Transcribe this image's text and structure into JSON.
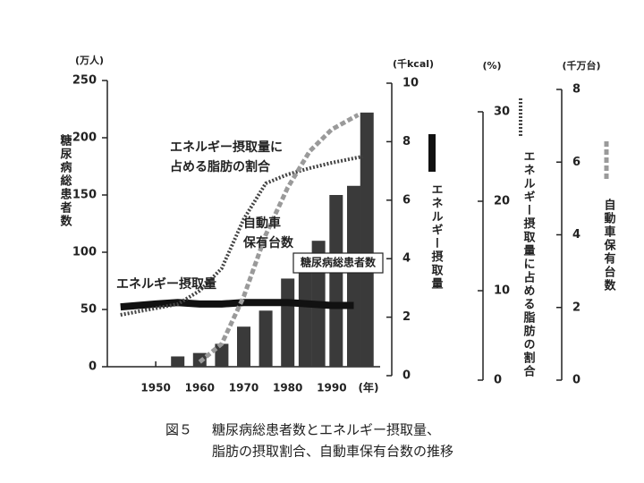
{
  "chart_data": {
    "type": "combo",
    "xlim": [
      1939,
      2001
    ],
    "xticks": [
      1950,
      1960,
      1970,
      1980,
      1990
    ],
    "x_unit": "(年)",
    "ylim": [
      0,
      250
    ],
    "yticks": [
      0,
      50,
      100,
      150,
      200,
      250
    ],
    "y_unit": "(万人)",
    "y2lim": [
      0,
      10
    ],
    "y2ticks": [
      0,
      2,
      4,
      6,
      8,
      10
    ],
    "y2_unit": "(千kcal)",
    "y3lim": [
      0,
      30
    ],
    "y3ticks": [
      0,
      10,
      20,
      30
    ],
    "y3_unit": "(%)",
    "y4lim": [
      0,
      8
    ],
    "y4ticks": [
      0,
      2,
      4,
      6,
      8
    ],
    "y4_unit": "(千万台)",
    "series": [
      {
        "name": "糖尿病総患者数",
        "type": "bar",
        "axis": "y",
        "color": "#3a3a3a",
        "x": [
          1955,
          1960,
          1965,
          1970,
          1975,
          1980,
          1984,
          1987,
          1991,
          1995,
          1998
        ],
        "values": [
          9,
          12,
          20,
          35,
          49,
          77,
          88,
          110,
          150,
          158,
          222
        ]
      },
      {
        "name": "エネルギー摂取量",
        "type": "line",
        "axis": "y2",
        "color": "#111111",
        "style": "solid",
        "x": [
          1942,
          1950,
          1955,
          1960,
          1965,
          1970,
          1975,
          1980,
          1985,
          1990,
          1995
        ],
        "values": [
          2.35,
          2.45,
          2.5,
          2.45,
          2.45,
          2.5,
          2.5,
          2.5,
          2.45,
          2.4,
          2.4
        ]
      },
      {
        "name": "エネルギー摂取量に占める脂肪の割合",
        "type": "line",
        "axis": "y3",
        "color": "#444444",
        "style": "dotted",
        "x": [
          1942,
          1955,
          1960,
          1965,
          1970,
          1975,
          1980,
          1985,
          1990,
          1997
        ],
        "values": [
          7.3,
          8.5,
          10,
          12.5,
          18,
          22,
          23,
          23.7,
          24.3,
          25
        ]
      },
      {
        "name": "自動車保有台数",
        "type": "line",
        "axis": "y4",
        "color": "#9a9a9a",
        "style": "dashed",
        "x": [
          1960,
          1965,
          1970,
          1975,
          1980,
          1985,
          1990,
          1996
        ],
        "values": [
          0.5,
          1.0,
          2.3,
          4.0,
          5.3,
          6.3,
          6.9,
          7.3
        ]
      }
    ],
    "annotations": [
      {
        "lines": [
          "エネルギー摂取量に",
          "占める脂肪の割合"
        ]
      },
      {
        "lines": [
          "自動車",
          "保有台数"
        ]
      },
      {
        "lines": [
          "糖尿病総患者数"
        ]
      },
      {
        "lines": [
          "エネルギー摂取量"
        ]
      }
    ],
    "caption": {
      "label": "図５",
      "lines": [
        "糖尿病総患者数とエネルギー摂取量、",
        "脂肪の摂取割合、自動車保有台数の推移"
      ]
    }
  }
}
